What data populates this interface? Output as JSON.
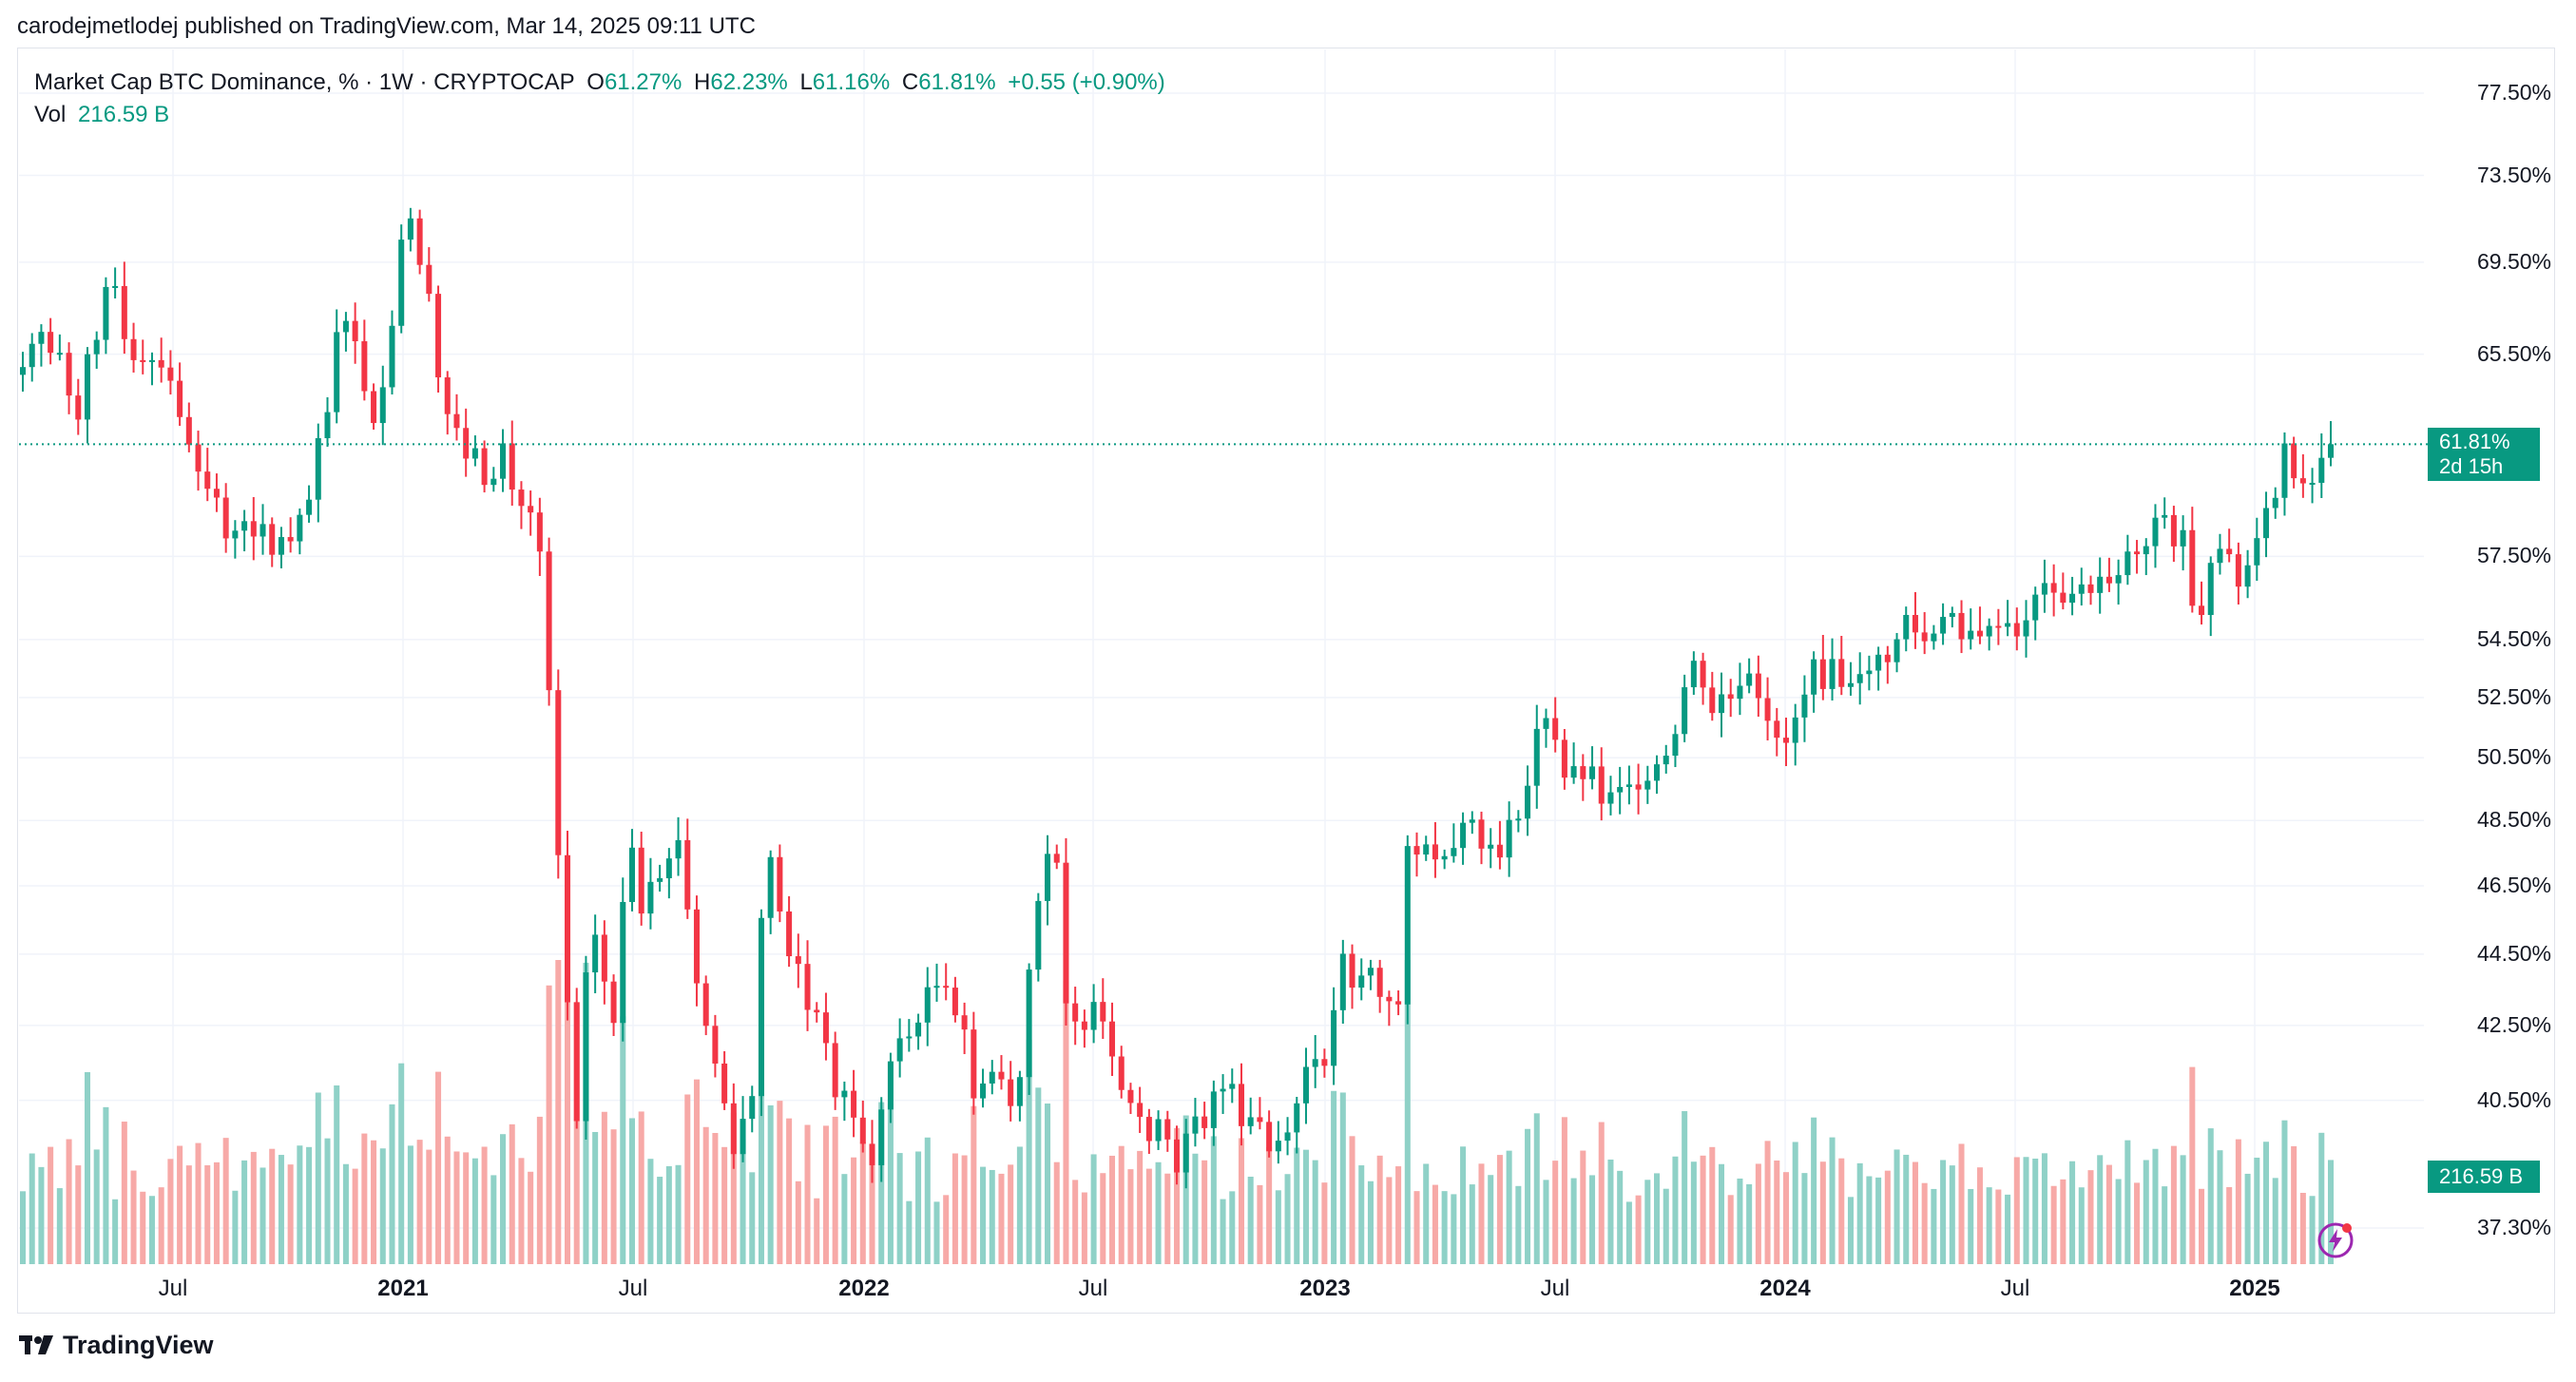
{
  "header": {
    "published_line": "carodejmetlodej published on TradingView.com, Mar 14, 2025 09:11 UTC"
  },
  "legend": {
    "symbol": "Market Cap BTC Dominance, % · 1W · CRYPTOCAP",
    "o_label": "O",
    "o_value": "61.27%",
    "h_label": "H",
    "h_value": "62.23%",
    "l_label": "L",
    "l_value": "61.16%",
    "c_label": "C",
    "c_value": "61.81%",
    "change": "+0.55 (+0.90%)",
    "vol_label": "Vol",
    "vol_value": "216.59 B"
  },
  "badges": {
    "price": "61.81%",
    "countdown": "2d 15h",
    "volume": "216.59 B"
  },
  "footer": {
    "brand": "TradingView"
  },
  "colors": {
    "up": "#089981",
    "down": "#f23645",
    "vol_up": "#8fd1c7",
    "vol_down": "#f7a9a7"
  },
  "chart_data": {
    "type": "candlestick",
    "title": "Market Cap BTC Dominance, % · 1W · CRYPTOCAP",
    "x_tick_labels": [
      "Jul",
      "2021",
      "Jul",
      "2022",
      "Jul",
      "2023",
      "Jul",
      "2024",
      "Jul",
      "2025"
    ],
    "y_tick_labels": [
      "77.50%",
      "73.50%",
      "69.50%",
      "65.50%",
      "57.50%",
      "54.50%",
      "52.50%",
      "50.50%",
      "48.50%",
      "46.50%",
      "44.50%",
      "42.50%",
      "40.50%",
      "37.30%"
    ],
    "y_scale": "log",
    "ylim": [
      37.3,
      77.5
    ],
    "last_close": 61.81,
    "closes": [
      64.96,
      65.94,
      66.45,
      65.56,
      65.56,
      63.78,
      62.8,
      65.5,
      66.11,
      68.4,
      68.44,
      66.14,
      65.25,
      65.19,
      65.25,
      64.94,
      64.39,
      62.9,
      61.8,
      60.73,
      60.06,
      59.72,
      58.17,
      58.46,
      58.82,
      58.24,
      58.71,
      57.56,
      58.22,
      58.06,
      59.06,
      59.64,
      62.05,
      63.1,
      66.44,
      66.92,
      66.05,
      63.96,
      62.66,
      64.12,
      66.71,
      70.52,
      71.49,
      69.38,
      68.1,
      64.53,
      63.02,
      62.46,
      61.24,
      61.65,
      60.21,
      60.45,
      61.84,
      60.03,
      59.4,
      59.15,
      57.68,
      52.75,
      47.43,
      43.14,
      39.96,
      43.98,
      45.06,
      43.72,
      42.57,
      46.02,
      47.66,
      45.68,
      46.62,
      46.73,
      47.33,
      47.89,
      45.8,
      43.67,
      42.49,
      41.47,
      40.42,
      39.12,
      40.02,
      40.61,
      45.55,
      47.37,
      45.74,
      44.44,
      44.22,
      42.93,
      42.86,
      42.02,
      40.58,
      40.75,
      40.05,
      39.38,
      38.84,
      40.26,
      41.53,
      42.15,
      42.2,
      42.58,
      43.56,
      43.6,
      43.55,
      42.78,
      42.39,
      40.55,
      40.94,
      41.25,
      41.05,
      40.35,
      41.11,
      44.06,
      46.05,
      47.47,
      47.2,
      43.11,
      42.61,
      42.38,
      43.15,
      42.61,
      41.66,
      40.77,
      40.43,
      40.07,
      39.45,
      40.01,
      39.49,
      38.66,
      39.64,
      40.08,
      39.78,
      40.73,
      40.8,
      40.93,
      39.83,
      40.06,
      39.94,
      39.19,
      39.46,
      39.67,
      40.42,
      41.38,
      41.59,
      41.41,
      42.92,
      44.51,
      43.55,
      43.89,
      44.11,
      43.29,
      43.17,
      43.08,
      47.71,
      47.45,
      47.76,
      47.3,
      47.4,
      47.65,
      48.43,
      48.53,
      47.63,
      47.75,
      47.36,
      48.52,
      48.56,
      49.6,
      51.45,
      51.81,
      51.09,
      49.86,
      50.23,
      49.81,
      50.22,
      49.03,
      49.39,
      49.56,
      49.64,
      49.48,
      49.76,
      50.29,
      50.57,
      51.28,
      52.85,
      53.76,
      52.84,
      51.98,
      52.61,
      52.46,
      52.9,
      53.32,
      52.48,
      51.72,
      51.16,
      50.99,
      51.83,
      52.6,
      53.81,
      52.79,
      53.82,
      52.86,
      52.99,
      53.3,
      53.42,
      53.97,
      53.71,
      54.51,
      55.37,
      54.75,
      54.44,
      54.71,
      55.3,
      55.44,
      54.51,
      54.81,
      54.61,
      54.98,
      54.95,
      55.08,
      54.61,
      55.18,
      56.1,
      56.52,
      56.17,
      55.81,
      56.13,
      56.47,
      56.16,
      56.75,
      56.51,
      56.81,
      57.68,
      57.58,
      57.88,
      58.95,
      59.05,
      57.87,
      58.48,
      55.7,
      55.37,
      57.26,
      57.78,
      57.58,
      56.39,
      57.17,
      58.18,
      59.32,
      59.71,
      61.84,
      60.47,
      60.27,
      60.29,
      61.27,
      61.81
    ],
    "volume_note": "volume histogram in billions; latest bar 216.59 B"
  }
}
